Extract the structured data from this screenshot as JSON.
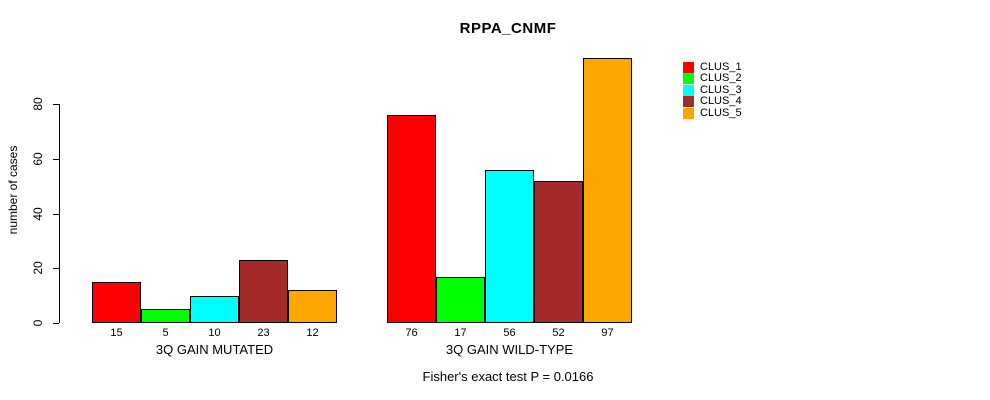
{
  "title": "RPPA_CNMF",
  "footer": "Fisher's exact test P = 0.0166",
  "chart_data": {
    "type": "bar",
    "title": "RPPA_CNMF",
    "xlabel": "",
    "ylabel": "number of cases",
    "yticks": [
      0,
      20,
      40,
      60,
      80
    ],
    "ylim": [
      0,
      97
    ],
    "grid": false,
    "bar_value_labels": true,
    "legend_position": "top-right",
    "categories": [
      "3Q GAIN MUTATED",
      "3Q GAIN WILD-TYPE"
    ],
    "series": [
      {
        "name": "CLUS_1",
        "color": "#FF0000",
        "values": [
          15,
          76
        ]
      },
      {
        "name": "CLUS_2",
        "color": "#00FF00",
        "values": [
          5,
          17
        ]
      },
      {
        "name": "CLUS_3",
        "color": "#00FFFF",
        "values": [
          10,
          56
        ]
      },
      {
        "name": "CLUS_4",
        "color": "#A52A2A",
        "values": [
          23,
          52
        ]
      },
      {
        "name": "CLUS_5",
        "color": "#FFA500",
        "values": [
          12,
          97
        ]
      }
    ],
    "annotation": "Fisher's exact test P = 0.0166"
  }
}
